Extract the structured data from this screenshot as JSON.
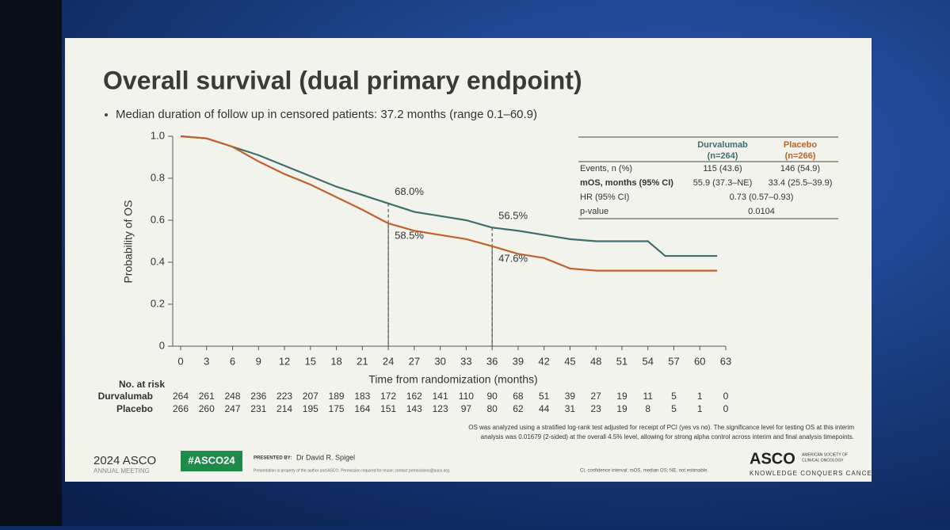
{
  "chart_data": {
    "type": "line",
    "title": "Overall survival (dual primary endpoint)",
    "subtitle": "Median duration of follow up in censored patients: 37.2 months (range 0.1–60.9)",
    "x_label": "Time from randomization (months)",
    "y_label": "Probability of OS",
    "x": [
      0,
      3,
      6,
      9,
      12,
      15,
      18,
      21,
      24,
      27,
      30,
      33,
      36,
      39,
      42,
      45,
      48,
      51,
      54,
      56,
      60,
      62
    ],
    "series": [
      {
        "name": "Durvalumab",
        "color": "#3f6e6c",
        "values": [
          1.0,
          0.99,
          0.95,
          0.91,
          0.86,
          0.81,
          0.76,
          0.72,
          0.68,
          0.64,
          0.62,
          0.6,
          0.565,
          0.55,
          0.53,
          0.51,
          0.5,
          0.5,
          0.5,
          0.43,
          0.43,
          0.43
        ]
      },
      {
        "name": "Placebo",
        "color": "#c0622a",
        "values": [
          1.0,
          0.99,
          0.95,
          0.88,
          0.82,
          0.77,
          0.71,
          0.65,
          0.585,
          0.55,
          0.53,
          0.51,
          0.476,
          0.44,
          0.42,
          0.37,
          0.36,
          0.36,
          0.36,
          0.36,
          0.36,
          0.36
        ]
      }
    ],
    "xlim": [
      0,
      63
    ],
    "xticks": [
      0,
      3,
      6,
      9,
      12,
      15,
      18,
      21,
      24,
      27,
      30,
      33,
      36,
      39,
      42,
      45,
      48,
      51,
      54,
      57,
      60,
      63
    ],
    "ylim": [
      0,
      1
    ],
    "yticks": [
      0,
      0.2,
      0.4,
      0.6,
      0.8,
      {
        "value": 1,
        "label": "1.0"
      }
    ],
    "annotations": [
      {
        "x": 24,
        "value": 0.68,
        "label": "68.0%"
      },
      {
        "x": 24,
        "value": 0.585,
        "label": "58.5%"
      },
      {
        "x": 36,
        "value": 0.565,
        "label": "56.5%"
      },
      {
        "x": 36,
        "value": 0.476,
        "label": "47.6%"
      }
    ],
    "at_risk": {
      "title": "No. at risk",
      "rows": [
        {
          "name": "Durvalumab",
          "values": [
            264,
            261,
            248,
            236,
            223,
            207,
            189,
            183,
            172,
            162,
            141,
            110,
            90,
            68,
            51,
            39,
            27,
            19,
            11,
            5,
            1,
            0
          ]
        },
        {
          "name": "Placebo",
          "values": [
            266,
            260,
            247,
            231,
            214,
            195,
            175,
            164,
            151,
            143,
            123,
            97,
            80,
            62,
            44,
            31,
            23,
            19,
            8,
            5,
            1,
            0
          ]
        }
      ]
    },
    "table": {
      "header": [
        [
          "Durvalumab",
          "(n=264)"
        ],
        [
          "Placebo",
          "(n=266)"
        ]
      ],
      "rows": [
        [
          "Events, n (%)",
          "115 (43.6)",
          "146 (54.9)"
        ],
        [
          "mOS, months (95% CI)",
          "55.9 (37.3–NE)",
          "33.4 (25.5–39.9)"
        ],
        [
          "HR (95% CI)",
          "0.73 (0.57–0.93)"
        ],
        [
          "p-value",
          "0.0104"
        ]
      ]
    },
    "footnote": [
      "OS was analyzed using a stratified log-rank test adjusted for receipt of PCI (yes vs no). The significance level for testing OS at this interim",
      "analysis was 0.01679 (2-sided) at the overall 4.5% level, allowing for strong alpha control across interim and final analysis timepoints."
    ]
  },
  "footer": {
    "meeting": "2024 ASCO",
    "meeting_sub": "ANNUAL MEETING",
    "hashtag": "#ASCO24",
    "presented_by": "PRESENTED BY:",
    "presenter": "Dr David R. Spigel",
    "disclaimer": "Presentation is property of the author and ASCO. Permission required for reuse; contact permissions@asco.org.",
    "abbreviations": "CI, confidence interval; mOS, median OS; NE, not estimable.",
    "logo": "ASCO",
    "logo_sub": [
      "AMERICAN SOCIETY OF",
      "CLINICAL ONCOLOGY"
    ],
    "tagline": "KNOWLEDGE CONQUERS CANCER"
  }
}
